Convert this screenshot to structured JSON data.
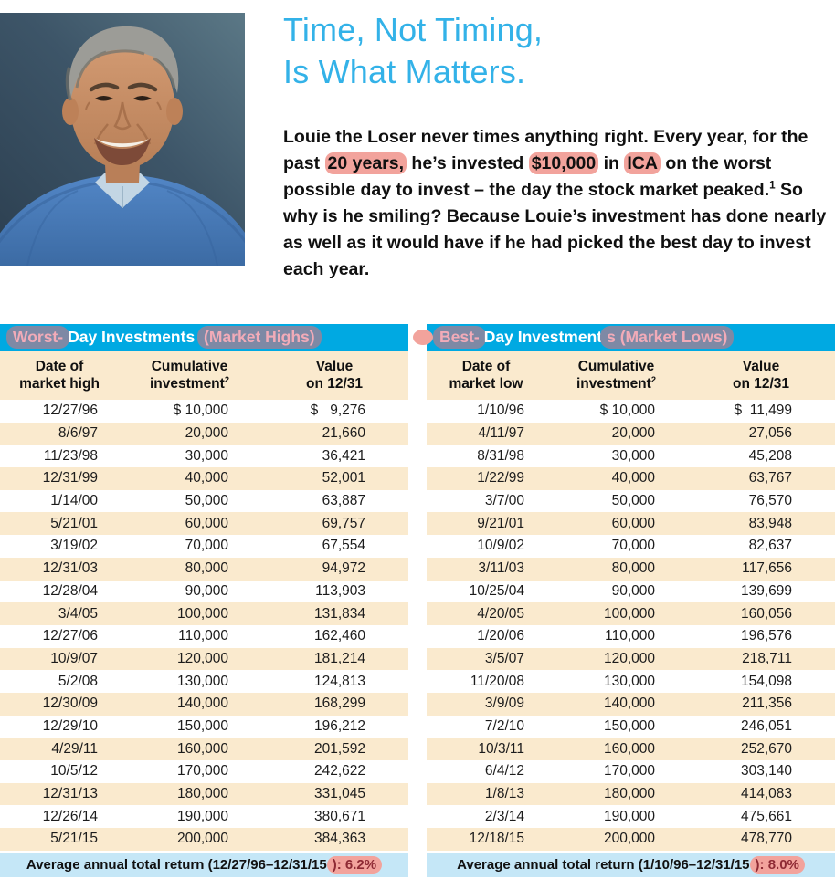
{
  "colors": {
    "accent_cyan": "#00A9E2",
    "row_cream": "#FAEACE",
    "footer_blue": "#C5E7F7",
    "highlight_pink": "#F2A39C",
    "title_blue": "#33B2E8"
  },
  "header": {
    "title_line1": "Time, Not Timing,",
    "title_line2": "Is What Matters."
  },
  "intro": {
    "segments": [
      {
        "text": "Louie the Loser never times anything right. Every year, for the past ",
        "hl": false
      },
      {
        "text": "20 years,",
        "hl": true
      },
      {
        "text": " he’s invested ",
        "hl": false
      },
      {
        "text": "$10,000",
        "hl": true
      },
      {
        "text": " in ",
        "hl": false
      },
      {
        "text": "ICA",
        "hl": true
      },
      {
        "text": " on the worst possible day to invest – the day the stock market peaked.",
        "hl": false
      },
      {
        "text": "1",
        "sup": true
      },
      {
        "text": " So why is he smiling? Because Louie’s investment has done nearly as well as it would have if he had picked the best day to invest each year.",
        "hl": false
      }
    ]
  },
  "tables": [
    {
      "name": "worst-day-table",
      "header_segments": [
        {
          "text": "Worst-",
          "hl": true
        },
        {
          "text": "Day Investments ",
          "hl": false
        },
        {
          "text": "(Market Highs)",
          "hl": true
        }
      ],
      "columns": [
        {
          "lines": [
            "Date of",
            "market high"
          ]
        },
        {
          "lines": [
            "Cumulative",
            "investment"
          ],
          "sup": "2"
        },
        {
          "lines": [
            "Value",
            "on 12/31"
          ]
        }
      ],
      "rows": [
        [
          "12/27/96",
          "$ 10,000",
          "$   9,276"
        ],
        [
          "8/6/97",
          "20,000",
          "21,660"
        ],
        [
          "11/23/98",
          "30,000",
          "36,421"
        ],
        [
          "12/31/99",
          "40,000",
          "52,001"
        ],
        [
          "1/14/00",
          "50,000",
          "63,887"
        ],
        [
          "5/21/01",
          "60,000",
          "69,757"
        ],
        [
          "3/19/02",
          "70,000",
          "67,554"
        ],
        [
          "12/31/03",
          "80,000",
          "94,972"
        ],
        [
          "12/28/04",
          "90,000",
          "113,903"
        ],
        [
          "3/4/05",
          "100,000",
          "131,834"
        ],
        [
          "12/27/06",
          "110,000",
          "162,460"
        ],
        [
          "10/9/07",
          "120,000",
          "181,214"
        ],
        [
          "5/2/08",
          "130,000",
          "124,813"
        ],
        [
          "12/30/09",
          "140,000",
          "168,299"
        ],
        [
          "12/29/10",
          "150,000",
          "196,212"
        ],
        [
          "4/29/11",
          "160,000",
          "201,592"
        ],
        [
          "10/5/12",
          "170,000",
          "242,622"
        ],
        [
          "12/31/13",
          "180,000",
          "331,045"
        ],
        [
          "12/26/14",
          "190,000",
          "380,671"
        ],
        [
          "5/21/15",
          "200,000",
          "384,363"
        ]
      ],
      "footer_plain": "Average annual total return (12/27/96–12/31/15",
      "footer_highlight": "): 6.2%"
    },
    {
      "name": "best-day-table",
      "header_segments": [
        {
          "text": "Best-",
          "hl": true
        },
        {
          "text": "Day Investment",
          "hl": false
        },
        {
          "text": "s (Market Lows)",
          "hl": true
        }
      ],
      "columns": [
        {
          "lines": [
            "Date of",
            "market low"
          ]
        },
        {
          "lines": [
            "Cumulative",
            "investment"
          ],
          "sup": "2"
        },
        {
          "lines": [
            "Value",
            "on 12/31"
          ]
        }
      ],
      "rows": [
        [
          "1/10/96",
          "$ 10,000",
          "$  11,499"
        ],
        [
          "4/11/97",
          "20,000",
          "27,056"
        ],
        [
          "8/31/98",
          "30,000",
          "45,208"
        ],
        [
          "1/22/99",
          "40,000",
          "63,767"
        ],
        [
          "3/7/00",
          "50,000",
          "76,570"
        ],
        [
          "9/21/01",
          "60,000",
          "83,948"
        ],
        [
          "10/9/02",
          "70,000",
          "82,637"
        ],
        [
          "3/11/03",
          "80,000",
          "117,656"
        ],
        [
          "10/25/04",
          "90,000",
          "139,699"
        ],
        [
          "4/20/05",
          "100,000",
          "160,056"
        ],
        [
          "1/20/06",
          "110,000",
          "196,576"
        ],
        [
          "3/5/07",
          "120,000",
          "218,711"
        ],
        [
          "11/20/08",
          "130,000",
          "154,098"
        ],
        [
          "3/9/09",
          "140,000",
          "211,356"
        ],
        [
          "7/2/10",
          "150,000",
          "246,051"
        ],
        [
          "10/3/11",
          "160,000",
          "252,670"
        ],
        [
          "6/4/12",
          "170,000",
          "303,140"
        ],
        [
          "1/8/13",
          "180,000",
          "414,083"
        ],
        [
          "2/3/14",
          "190,000",
          "475,661"
        ],
        [
          "12/18/15",
          "200,000",
          "478,770"
        ]
      ],
      "footer_plain": "Average annual total return (1/10/96–12/31/15",
      "footer_highlight": "): 8.0%"
    }
  ]
}
